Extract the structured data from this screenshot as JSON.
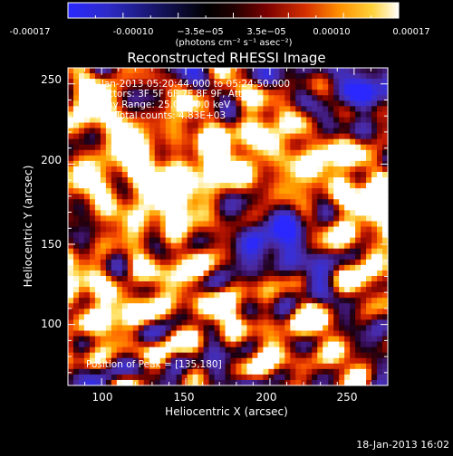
{
  "colorbar": {
    "tick_labels": [
      "-0.00017",
      "-0.00010",
      "−3.5e−05",
      "3.5e−05",
      "0.00010",
      "0.00017"
    ],
    "unit_label": "(photons cm⁻² s⁻¹ asec⁻²)",
    "gradient_colors": [
      "#2a28ff",
      "#2d2ac8",
      "#000000",
      "#200000",
      "#7a0000",
      "#d63000",
      "#ff8f00",
      "#ffd23a",
      "#ffffff"
    ]
  },
  "image": {
    "title": "Reconstructed RHESSI Image",
    "xlabel": "Heliocentric X (arcsec)",
    "ylabel": "Heliocentric Y (arcsec)",
    "x_ticks": [
      "100",
      "150",
      "200",
      "250"
    ],
    "y_ticks": [
      "100",
      "150",
      "200",
      "250"
    ],
    "info_lines": [
      "15-Jan-2013 05:20:44.000 to 05:24:50.000",
      "Detectors: 3F 5F 6F 7F 8F 9F, Att 0",
      "Energy Range: 25.0 - 50.0 keV",
      "Clean     Total counts: 4.83E+03"
    ],
    "peak_label": "Position of Peak = [135,180]"
  },
  "footer": {
    "timestamp": "18-Jan-2013 16:02"
  },
  "chart_data": {
    "type": "heatmap",
    "title": "Reconstructed RHESSI Image",
    "xlabel": "Heliocentric X (arcsec)",
    "ylabel": "Heliocentric Y (arcsec)",
    "xlim": [
      80,
      270
    ],
    "ylim": [
      62,
      260
    ],
    "colorbar_range": [
      -0.00017,
      0.00017
    ],
    "peak_position": [
      135,
      180
    ],
    "notes": "Image intensity field is rendered procedurally; values are not individually readable from the screenshot."
  }
}
